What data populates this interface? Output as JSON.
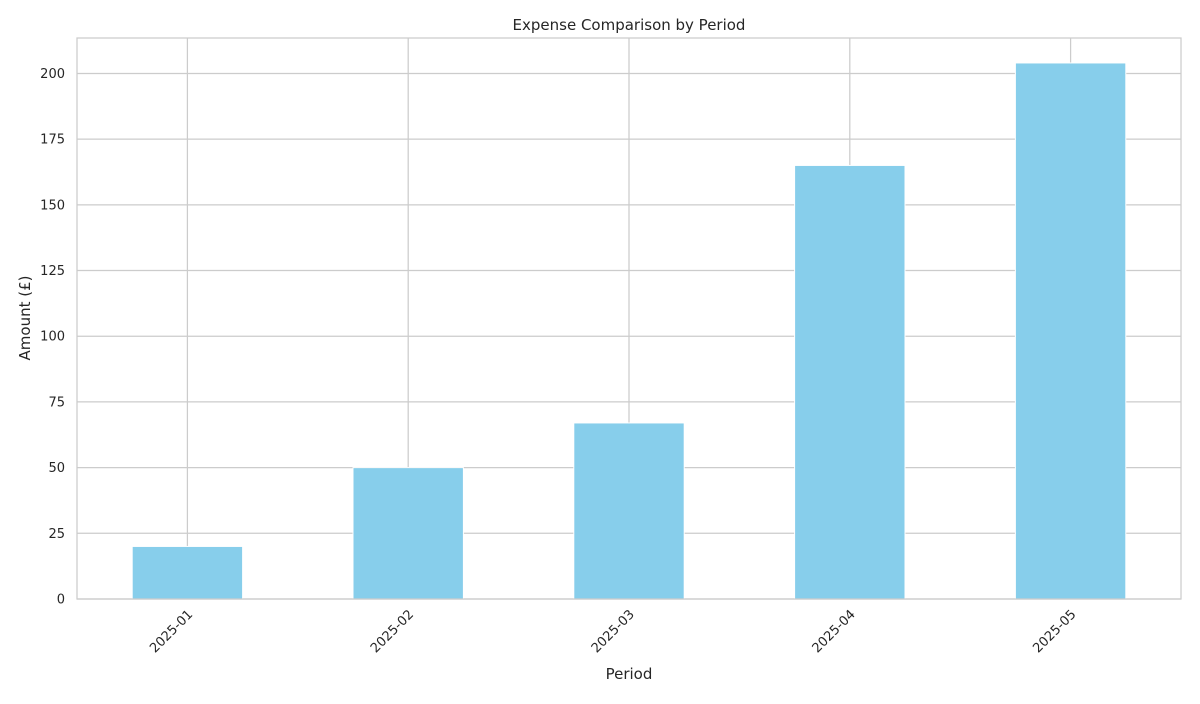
{
  "chart_data": {
    "type": "bar",
    "title": "Expense Comparison by Period",
    "xlabel": "Period",
    "ylabel": "Amount (£)",
    "categories": [
      "2025-01",
      "2025-02",
      "2025-03",
      "2025-04",
      "2025-05"
    ],
    "values": [
      20,
      50,
      67,
      165,
      204
    ],
    "ylim": [
      0,
      213.5
    ],
    "yticks": [
      0,
      25,
      50,
      75,
      100,
      125,
      150,
      175,
      200
    ],
    "grid": true,
    "bar_color": "#87ceeb",
    "grid_color": "#cccccc"
  }
}
